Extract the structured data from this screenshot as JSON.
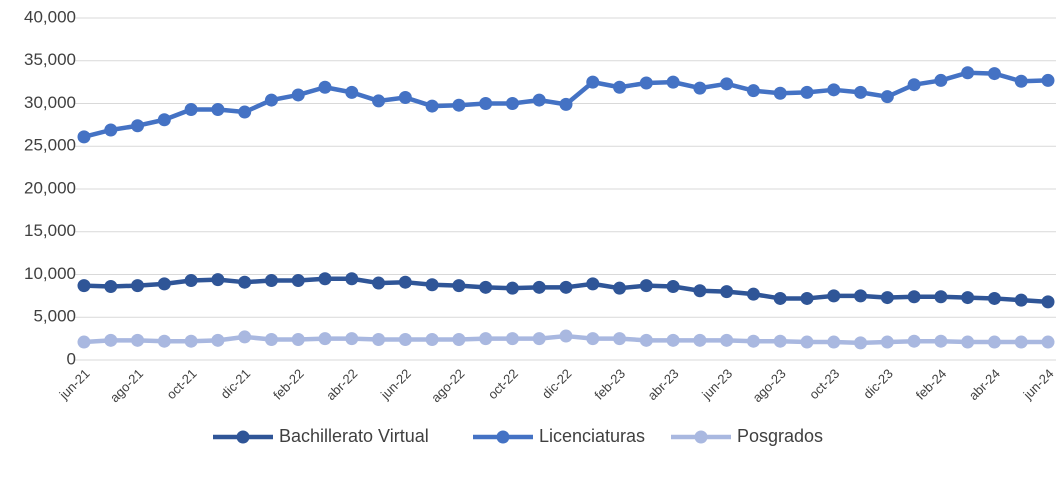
{
  "chart_data": {
    "type": "line",
    "categories": [
      "jun-21",
      null,
      "ago-21",
      null,
      "oct-21",
      null,
      "dic-21",
      null,
      "feb-22",
      null,
      "abr-22",
      null,
      "jun-22",
      null,
      "ago-22",
      null,
      "oct-22",
      null,
      "dic-22",
      null,
      "feb-23",
      null,
      "abr-23",
      null,
      "jun-23",
      null,
      "ago-23",
      null,
      "oct-23",
      null,
      "dic-23",
      null,
      "feb-24",
      null,
      "abr-24",
      null,
      "jun-24"
    ],
    "series": [
      {
        "name": "Bachillerato Virtual",
        "color": "#2f5597",
        "values": [
          8700,
          8600,
          8700,
          8900,
          9300,
          9400,
          9100,
          9300,
          9300,
          9500,
          9500,
          9000,
          9100,
          8800,
          8700,
          8500,
          8400,
          8500,
          8500,
          8900,
          8400,
          8700,
          8600,
          8100,
          8000,
          7700,
          7200,
          7200,
          7500,
          7500,
          7300,
          7400,
          7400,
          7300,
          7200,
          7000,
          6800
        ]
      },
      {
        "name": "Licenciaturas",
        "color": "#4472c4",
        "values": [
          26100,
          26900,
          27400,
          28100,
          29300,
          29300,
          29000,
          30400,
          31000,
          31900,
          31300,
          30300,
          30700,
          29700,
          29800,
          30000,
          30000,
          30400,
          29900,
          32500,
          31900,
          32400,
          32500,
          31800,
          32300,
          31500,
          31200,
          31300,
          31600,
          31300,
          30800,
          32200,
          32700,
          33600,
          33500,
          32600,
          32700
        ]
      },
      {
        "name": "Posgrados",
        "color": "#a9b8e0",
        "values": [
          2100,
          2300,
          2300,
          2200,
          2200,
          2300,
          2700,
          2400,
          2400,
          2500,
          2500,
          2400,
          2400,
          2400,
          2400,
          2500,
          2500,
          2500,
          2800,
          2500,
          2500,
          2300,
          2300,
          2300,
          2300,
          2200,
          2200,
          2100,
          2100,
          2000,
          2100,
          2200,
          2200,
          2100,
          2100,
          2100,
          2100
        ]
      }
    ],
    "ylim": [
      0,
      40000
    ],
    "yticks": [
      0,
      {
        "value": 5000,
        "label": "5,000"
      },
      {
        "value": 10000,
        "label": "10,000"
      },
      {
        "value": 15000,
        "label": "15,000"
      },
      {
        "value": 20000,
        "label": "20,000"
      },
      {
        "value": 25000,
        "label": "25,000"
      },
      {
        "value": 30000,
        "label": "30,000"
      },
      {
        "value": 35000,
        "label": "35,000"
      },
      {
        "value": 40000,
        "label": "40,000"
      }
    ],
    "grid": true,
    "legend": "bottom"
  }
}
